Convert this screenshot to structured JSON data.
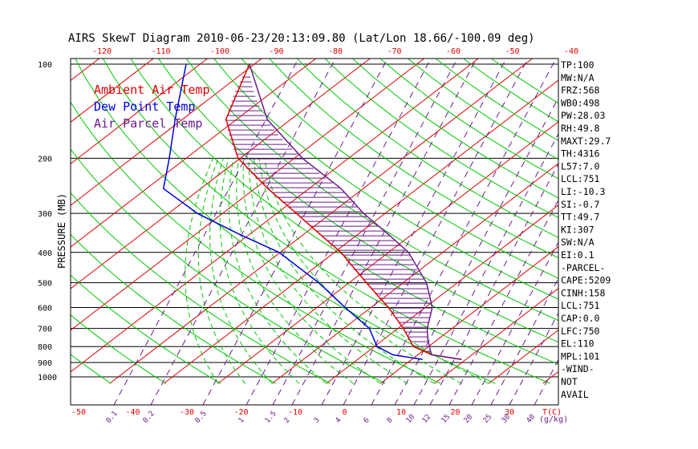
{
  "title": "AIRS SkewT Diagram 2010-06-23/20:13:09.80 (Lat/Lon 18.66/-100.09 deg)",
  "ylabel": "PRESSURE (MB)",
  "top_temps": [
    "-120",
    "-110",
    "-100",
    "-90",
    "-80",
    "-70",
    "-60",
    "-50",
    "-40"
  ],
  "bottom_temps": [
    "-50",
    "-40",
    "-30",
    "-20",
    "-10",
    "0",
    "10",
    "20",
    "30"
  ],
  "tc_label": "T(C)",
  "mixing_labels": [
    "0.1",
    "0.2",
    "0.5",
    "1",
    "1.5",
    "2",
    "3",
    "4",
    "6",
    "8",
    "10",
    "12",
    "15",
    "20",
    "25",
    "30",
    "40"
  ],
  "mixing_unit": "(g/kg)",
  "legend": [
    {
      "label": "Ambient Air Temp",
      "color": "#e00000"
    },
    {
      "label": "Dew Point Temp",
      "color": "#0000e0"
    },
    {
      "label": "Air Parcel Temp",
      "color": "#6a1b8a"
    }
  ],
  "indices": [
    "TP:100",
    "MW:N/A",
    "FRZ:568",
    "WB0:498",
    "PW:28.03",
    "RH:49.8",
    "MAXT:29.7",
    "TH:4316",
    "L57:7.0",
    "LCL:751",
    "LI:-10.3",
    "SI:-0.7",
    "TT:49.7",
    "KI:307",
    "SW:N/A",
    "EI:0.1",
    "-PARCEL-",
    "CAPE:5209",
    "CINH:158",
    "LCL:751",
    "CAP:0.0",
    "LFC:750",
    "EL:110",
    "MPL:101",
    "-WIND-",
    "NOT",
    "AVAIL"
  ],
  "colors": {
    "isotherm": "#e00000",
    "dry_adiabat": "#00c800",
    "moist_adiabat": "#00c800",
    "mixing_ratio": "#6a1b8a",
    "temp": "#e00000",
    "dewpoint": "#0000e0",
    "parcel": "#6a1b8a"
  },
  "chart_data": {
    "type": "line",
    "title": "AIRS SkewT Diagram 2010-06-23/20:13:09.80 (Lat/Lon 18.66/-100.09 deg)",
    "ylabel": "PRESSURE (MB)",
    "xlabel": "T(C)",
    "y_scale": "log",
    "pressure_levels": [
      100,
      200,
      300,
      400,
      500,
      600,
      700,
      800,
      900,
      1000
    ],
    "series": [
      {
        "name": "Ambient Air Temp",
        "points": [
          [
            100,
            -80.9
          ],
          [
            150,
            -72.0
          ],
          [
            200,
            -60.4
          ],
          [
            250,
            -47.6
          ],
          [
            300,
            -36.4
          ],
          [
            350,
            -27.0
          ],
          [
            400,
            -18.8
          ],
          [
            500,
            -6.8
          ],
          [
            600,
            3.2
          ],
          [
            700,
            11.0
          ],
          [
            800,
            17.2
          ],
          [
            850,
            22.6
          ],
          [
            880,
            29.2
          ]
        ]
      },
      {
        "name": "Dew Point Temp",
        "points": [
          [
            100,
            -92.6
          ],
          [
            150,
            -81.4
          ],
          [
            200,
            -73.1
          ],
          [
            250,
            -66.9
          ],
          [
            300,
            -54.7
          ],
          [
            350,
            -41.9
          ],
          [
            400,
            -30.2
          ],
          [
            500,
            -15.6
          ],
          [
            600,
            -4.8
          ],
          [
            700,
            4.7
          ],
          [
            800,
            10.5
          ],
          [
            850,
            15.4
          ],
          [
            880,
            22.0
          ]
        ]
      },
      {
        "name": "Air Parcel Temp",
        "points": [
          [
            100,
            -80.9
          ],
          [
            150,
            -64.4
          ],
          [
            200,
            -48.5
          ],
          [
            250,
            -34.1
          ],
          [
            300,
            -24.0
          ],
          [
            350,
            -14.4
          ],
          [
            400,
            -6.3
          ],
          [
            500,
            4.3
          ],
          [
            600,
            11.3
          ],
          [
            700,
            15.4
          ],
          [
            760,
            18.2
          ],
          [
            850,
            22.5
          ],
          [
            880,
            29.2
          ]
        ]
      }
    ]
  }
}
